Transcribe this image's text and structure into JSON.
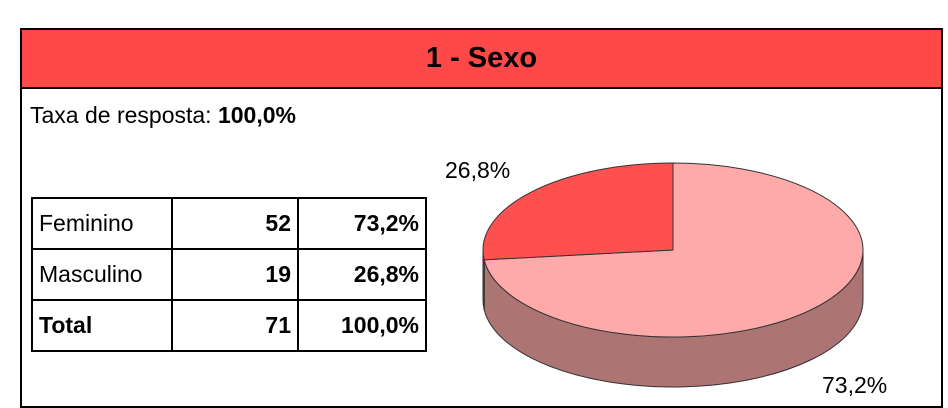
{
  "header": {
    "title": "1 - Sexo"
  },
  "response_rate": {
    "label": "Taxa de resposta:",
    "value": "100,0%"
  },
  "table": {
    "rows": [
      [
        "Feminino",
        52,
        "73,2%"
      ],
      [
        "Masculino",
        19,
        "26,8%"
      ],
      [
        "Total",
        71,
        "100,0%"
      ]
    ]
  },
  "chart_data": {
    "type": "pie",
    "values": [
      73.2,
      26.8
    ],
    "value_labels": [
      "73,2%",
      "26,8%"
    ],
    "colors": [
      "#ffaaaa",
      "#ff5050"
    ]
  }
}
